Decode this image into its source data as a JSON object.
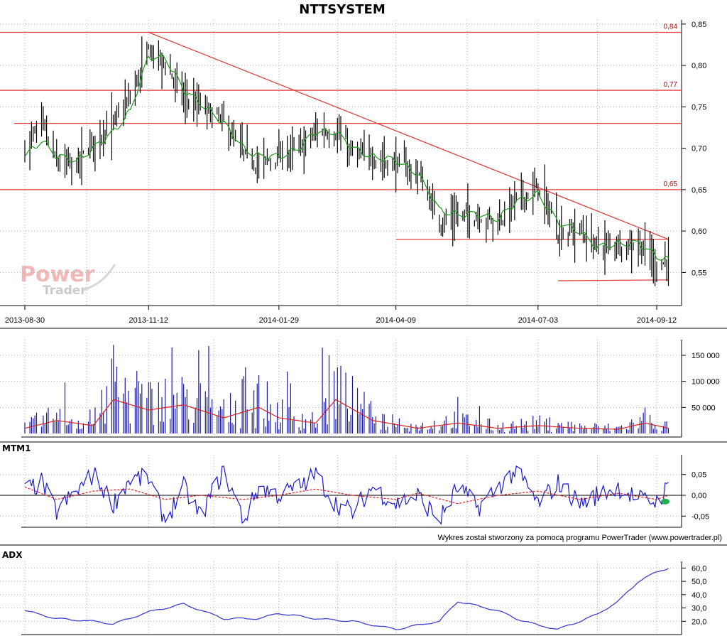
{
  "watermark": {
    "line1": "Power",
    "line2": "Trader"
  },
  "credit": "Wykres został stworzony za pomocą programu PowerTrader (www.powertrader.pl)",
  "colors": {
    "price_bar": "#000000",
    "price_ma": "#1a9a1a",
    "level_line": "#e04040",
    "volume_bar": "#1a1aa0",
    "volume_ma": "#e02020",
    "mtm_line": "#1a1ad0",
    "mtm_signal": "#e02020",
    "mtm_marker": "#22b14c",
    "adx_line": "#4040d0",
    "grid": "#b0b0b0"
  },
  "chart_data": [
    {
      "type": "ohlc",
      "title": "NTTSYSTEM",
      "x_labels": [
        "2013-08-30",
        "2013-11-12",
        "2014-01-29",
        "2014-04-09",
        "2014-07-03",
        "2014-09-12"
      ],
      "y_ticks": [
        "0,85",
        "0,80",
        "0,75",
        "0,70",
        "0,65",
        "0,60",
        "0,55"
      ],
      "ylim": [
        0.51,
        0.855
      ],
      "grid": true,
      "horizontal_levels": [
        {
          "label": "0,84",
          "value": 0.84
        },
        {
          "label": "0,77",
          "value": 0.77
        },
        {
          "label": "",
          "value": 0.73
        },
        {
          "label": "0,65",
          "value": 0.65
        }
      ],
      "support_lines": [
        {
          "from": [
            "2014-04-09",
            0.59
          ],
          "to": [
            "2014-09-19",
            0.59
          ]
        },
        {
          "from": [
            "2014-07-15",
            0.54
          ],
          "to": [
            "2014-09-19",
            0.541
          ]
        }
      ],
      "trend_line": {
        "from": [
          "2013-11-12",
          0.84
        ],
        "to": [
          "2014-09-19",
          0.59
        ]
      },
      "series": [
        {
          "kind": "closing_price_path",
          "points": [
            [
              "2013-08-30",
              0.7
            ],
            [
              "2013-09-09",
              0.73
            ],
            [
              "2013-09-18",
              0.68
            ],
            [
              "2013-09-30",
              0.68
            ],
            [
              "2013-10-10",
              0.71
            ],
            [
              "2013-10-22",
              0.73
            ],
            [
              "2013-11-01",
              0.76
            ],
            [
              "2013-11-12",
              0.82
            ],
            [
              "2013-11-22",
              0.8
            ],
            [
              "2013-12-03",
              0.76
            ],
            [
              "2013-12-13",
              0.75
            ],
            [
              "2013-12-27",
              0.73
            ],
            [
              "2014-01-08",
              0.69
            ],
            [
              "2014-01-17",
              0.68
            ],
            [
              "2014-01-29",
              0.69
            ],
            [
              "2014-02-10",
              0.7
            ],
            [
              "2014-02-20",
              0.72
            ],
            [
              "2014-03-04",
              0.72
            ],
            [
              "2014-03-14",
              0.69
            ],
            [
              "2014-03-26",
              0.69
            ],
            [
              "2014-04-09",
              0.68
            ],
            [
              "2014-04-22",
              0.67
            ],
            [
              "2014-05-05",
              0.61
            ],
            [
              "2014-05-16",
              0.62
            ],
            [
              "2014-05-28",
              0.62
            ],
            [
              "2014-06-09",
              0.61
            ],
            [
              "2014-06-20",
              0.64
            ],
            [
              "2014-07-03",
              0.65
            ],
            [
              "2014-07-15",
              0.6
            ],
            [
              "2014-07-28",
              0.6
            ],
            [
              "2014-08-07",
              0.58
            ],
            [
              "2014-08-20",
              0.585
            ],
            [
              "2014-09-01",
              0.585
            ],
            [
              "2014-09-12",
              0.56
            ],
            [
              "2014-09-19",
              0.565
            ]
          ]
        },
        {
          "kind": "moving_average",
          "points": [
            [
              "2013-08-30",
              0.69
            ],
            [
              "2013-09-09",
              0.71
            ],
            [
              "2013-09-18",
              0.69
            ],
            [
              "2013-09-30",
              0.685
            ],
            [
              "2013-10-10",
              0.7
            ],
            [
              "2013-10-22",
              0.72
            ],
            [
              "2013-11-01",
              0.745
            ],
            [
              "2013-11-12",
              0.81
            ],
            [
              "2013-11-22",
              0.81
            ],
            [
              "2013-12-03",
              0.77
            ],
            [
              "2013-12-13",
              0.755
            ],
            [
              "2013-12-27",
              0.73
            ],
            [
              "2014-01-08",
              0.7
            ],
            [
              "2014-01-17",
              0.69
            ],
            [
              "2014-01-29",
              0.69
            ],
            [
              "2014-02-10",
              0.7
            ],
            [
              "2014-02-20",
              0.72
            ],
            [
              "2014-03-04",
              0.72
            ],
            [
              "2014-03-14",
              0.7
            ],
            [
              "2014-03-26",
              0.69
            ],
            [
              "2014-04-09",
              0.685
            ],
            [
              "2014-04-22",
              0.67
            ],
            [
              "2014-05-05",
              0.625
            ],
            [
              "2014-05-16",
              0.62
            ],
            [
              "2014-05-28",
              0.62
            ],
            [
              "2014-06-09",
              0.615
            ],
            [
              "2014-06-20",
              0.635
            ],
            [
              "2014-07-03",
              0.645
            ],
            [
              "2014-07-15",
              0.61
            ],
            [
              "2014-07-28",
              0.6
            ],
            [
              "2014-08-07",
              0.58
            ],
            [
              "2014-08-20",
              0.585
            ],
            [
              "2014-09-01",
              0.585
            ],
            [
              "2014-09-12",
              0.57
            ],
            [
              "2014-09-19",
              0.565
            ]
          ]
        }
      ]
    },
    {
      "type": "bar",
      "panel": "volume",
      "y_ticks": [
        "150 000",
        "100 000",
        "50 000"
      ],
      "ylim": [
        0,
        180000
      ],
      "grid": true,
      "peaks": [
        [
          "2013-09-18",
          40000
        ],
        [
          "2013-10-22",
          170000
        ],
        [
          "2013-11-05",
          120000
        ],
        [
          "2013-12-03",
          95000
        ],
        [
          "2014-01-08",
          110000
        ],
        [
          "2014-02-28",
          150000
        ],
        [
          "2014-03-07",
          130000
        ],
        [
          "2014-05-16",
          70000
        ],
        [
          "2014-09-05",
          50000
        ]
      ],
      "volume_ma": [
        [
          "2013-08-30",
          10000
        ],
        [
          "2013-09-18",
          25000
        ],
        [
          "2013-10-10",
          15000
        ],
        [
          "2013-10-22",
          65000
        ],
        [
          "2013-11-12",
          45000
        ],
        [
          "2013-12-03",
          55000
        ],
        [
          "2013-12-27",
          30000
        ],
        [
          "2014-01-17",
          50000
        ],
        [
          "2014-01-29",
          30000
        ],
        [
          "2014-02-20",
          20000
        ],
        [
          "2014-03-04",
          65000
        ],
        [
          "2014-03-26",
          25000
        ],
        [
          "2014-04-22",
          10000
        ],
        [
          "2014-05-16",
          20000
        ],
        [
          "2014-06-09",
          10000
        ],
        [
          "2014-07-03",
          15000
        ],
        [
          "2014-07-28",
          10000
        ],
        [
          "2014-08-20",
          8000
        ],
        [
          "2014-09-05",
          20000
        ],
        [
          "2014-09-19",
          10000
        ]
      ]
    },
    {
      "type": "line",
      "panel": "MTM1",
      "title": "MTM1",
      "y_ticks": [
        "0,05",
        "0,00",
        "-0,05"
      ],
      "ylim": [
        -0.07,
        0.07
      ],
      "grid": true,
      "mtm": [
        [
          "2013-08-30",
          0.01
        ],
        [
          "2013-09-09",
          0.03
        ],
        [
          "2013-09-18",
          -0.04
        ],
        [
          "2013-09-30",
          0.01
        ],
        [
          "2013-10-10",
          0.05
        ],
        [
          "2013-10-22",
          -0.02
        ],
        [
          "2013-11-01",
          0.04
        ],
        [
          "2013-11-12",
          0.04
        ],
        [
          "2013-11-22",
          -0.06
        ],
        [
          "2013-12-03",
          0.02
        ],
        [
          "2013-12-13",
          -0.05
        ],
        [
          "2013-12-27",
          0.06
        ],
        [
          "2014-01-08",
          -0.06
        ],
        [
          "2014-01-17",
          0.02
        ],
        [
          "2014-01-29",
          0.0
        ],
        [
          "2014-02-10",
          0.02
        ],
        [
          "2014-02-20",
          0.05
        ],
        [
          "2014-03-04",
          -0.02
        ],
        [
          "2014-03-14",
          -0.04
        ],
        [
          "2014-03-26",
          0.02
        ],
        [
          "2014-04-09",
          -0.02
        ],
        [
          "2014-04-22",
          0.0
        ],
        [
          "2014-05-05",
          -0.06
        ],
        [
          "2014-05-16",
          0.02
        ],
        [
          "2014-05-28",
          -0.03
        ],
        [
          "2014-06-09",
          0.02
        ],
        [
          "2014-06-20",
          0.06
        ],
        [
          "2014-07-03",
          -0.02
        ],
        [
          "2014-07-15",
          0.03
        ],
        [
          "2014-07-28",
          -0.02
        ],
        [
          "2014-08-07",
          0.0
        ],
        [
          "2014-08-20",
          0.02
        ],
        [
          "2014-09-01",
          -0.01
        ],
        [
          "2014-09-12",
          -0.015
        ],
        [
          "2014-09-19",
          0.02
        ]
      ],
      "signal": [
        [
          "2013-08-30",
          0.02
        ],
        [
          "2013-09-18",
          -0.01
        ],
        [
          "2013-10-10",
          0.01
        ],
        [
          "2013-11-01",
          0.015
        ],
        [
          "2013-11-22",
          -0.01
        ],
        [
          "2013-12-13",
          0.0
        ],
        [
          "2014-01-08",
          -0.01
        ],
        [
          "2014-01-29",
          0.0
        ],
        [
          "2014-02-20",
          0.015
        ],
        [
          "2014-03-14",
          0.0
        ],
        [
          "2014-04-09",
          -0.01
        ],
        [
          "2014-04-22",
          0.005
        ],
        [
          "2014-05-16",
          -0.02
        ],
        [
          "2014-06-09",
          0.0
        ],
        [
          "2014-07-03",
          0.01
        ],
        [
          "2014-07-28",
          -0.01
        ],
        [
          "2014-08-20",
          0.005
        ],
        [
          "2014-09-12",
          -0.01
        ],
        [
          "2014-09-19",
          0.0
        ]
      ],
      "marker": [
        "2014-09-12",
        -0.015
      ]
    },
    {
      "type": "line",
      "panel": "ADX",
      "title": "ADX",
      "y_ticks": [
        "60,0",
        "50,0",
        "40,0",
        "30,0",
        "20,0"
      ],
      "ylim": [
        10,
        65
      ],
      "grid": true,
      "series": [
        {
          "points": [
            [
              "2013-08-30",
              28
            ],
            [
              "2013-09-18",
              22
            ],
            [
              "2013-10-10",
              20
            ],
            [
              "2013-10-22",
              18
            ],
            [
              "2013-11-12",
              27
            ],
            [
              "2013-12-03",
              33
            ],
            [
              "2013-12-27",
              22
            ],
            [
              "2014-01-17",
              22
            ],
            [
              "2014-01-29",
              26
            ],
            [
              "2014-02-20",
              22
            ],
            [
              "2014-03-14",
              20
            ],
            [
              "2014-04-09",
              14
            ],
            [
              "2014-04-22",
              17
            ],
            [
              "2014-05-05",
              20
            ],
            [
              "2014-05-16",
              35
            ],
            [
              "2014-06-09",
              28
            ],
            [
              "2014-06-20",
              22
            ],
            [
              "2014-07-03",
              17
            ],
            [
              "2014-07-15",
              14
            ],
            [
              "2014-07-28",
              20
            ],
            [
              "2014-08-07",
              25
            ],
            [
              "2014-08-20",
              35
            ],
            [
              "2014-09-01",
              50
            ],
            [
              "2014-09-12",
              57
            ],
            [
              "2014-09-19",
              60
            ]
          ]
        }
      ]
    }
  ]
}
